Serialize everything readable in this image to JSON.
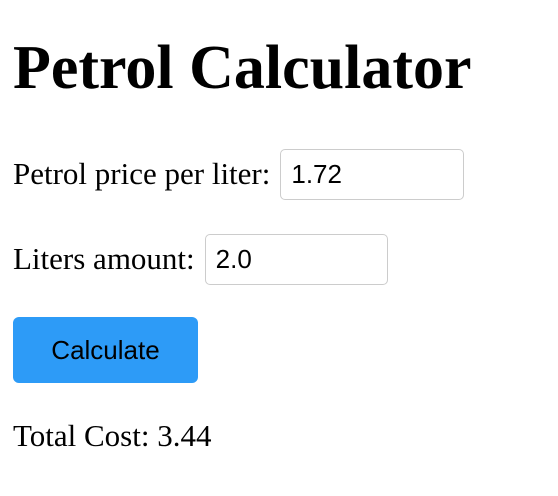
{
  "title": "Petrol Calculator",
  "form": {
    "price_label": "Petrol price per liter:",
    "price_value": "1.72",
    "liters_label": "Liters amount:",
    "liters_value": "2.0",
    "calculate_label": "Calculate"
  },
  "result": {
    "label": "Total Cost:",
    "value": "3.44"
  },
  "colors": {
    "button_background": "#2d9bf7",
    "input_border": "#cccccc"
  }
}
